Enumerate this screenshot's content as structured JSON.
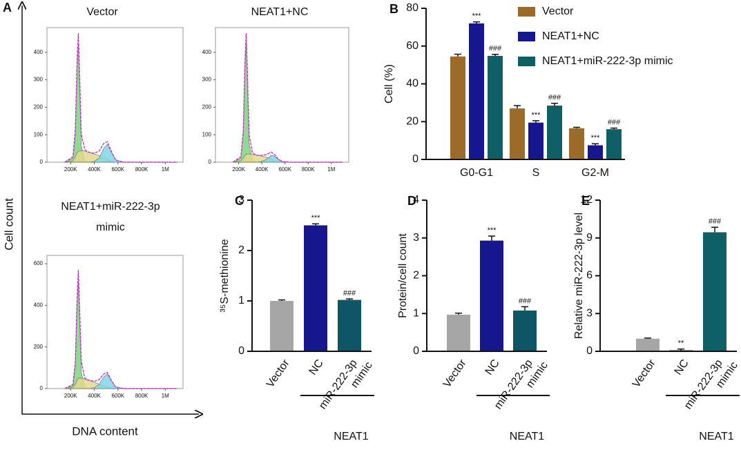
{
  "panel_A": {
    "label": "A",
    "y_label": "Cell count",
    "x_label": "DNA content"
  },
  "chart_data": [
    {
      "type": "histogram-curves",
      "title": [
        "Vector"
      ],
      "x": [
        150000,
        220000,
        240000,
        255000,
        265000,
        275000,
        290000,
        320000,
        360000,
        400000,
        440000,
        480000,
        510000,
        540000,
        580000,
        650000,
        1100000
      ],
      "series": [
        {
          "style": "area",
          "color": "#7ed37e",
          "values": [
            0,
            15,
            100,
            340,
            430,
            290,
            60,
            5,
            0,
            0,
            0,
            0,
            0,
            0,
            0,
            0,
            0
          ]
        },
        {
          "style": "area",
          "color": "#e2d98c",
          "values": [
            0,
            5,
            20,
            35,
            40,
            42,
            42,
            40,
            35,
            30,
            25,
            18,
            10,
            4,
            0,
            0,
            0
          ]
        },
        {
          "style": "area",
          "color": "#80d6e8",
          "values": [
            0,
            0,
            0,
            0,
            0,
            0,
            0,
            0,
            0,
            3,
            15,
            50,
            65,
            40,
            8,
            0,
            0
          ]
        },
        {
          "style": "line",
          "color": "#cc33cc",
          "values": [
            0,
            20,
            120,
            375,
            470,
            332,
            102,
            45,
            35,
            33,
            40,
            68,
            75,
            44,
            8,
            0,
            0
          ]
        }
      ],
      "xlim": [
        0,
        1150000
      ],
      "ylim": [
        0,
        490
      ],
      "yticks": [
        0,
        100,
        200,
        300,
        400
      ],
      "xticks": [
        {
          "value": 200000,
          "label": "200K"
        },
        {
          "value": 400000,
          "label": "400K"
        },
        {
          "value": 600000,
          "label": "600K"
        },
        {
          "value": 800000,
          "label": "800K"
        },
        {
          "value": 1000000,
          "label": "1M"
        }
      ]
    },
    {
      "type": "histogram-curves",
      "title": [
        "NEAT1+NC"
      ],
      "x": [
        150000,
        220000,
        240000,
        255000,
        265000,
        275000,
        290000,
        320000,
        360000,
        400000,
        440000,
        480000,
        510000,
        540000,
        580000,
        650000,
        1100000
      ],
      "series": [
        {
          "style": "area",
          "color": "#7ed37e",
          "values": [
            0,
            15,
            100,
            350,
            440,
            300,
            70,
            5,
            0,
            0,
            0,
            0,
            0,
            0,
            0,
            0,
            0
          ]
        },
        {
          "style": "area",
          "color": "#e2d98c",
          "values": [
            0,
            5,
            15,
            25,
            30,
            30,
            30,
            28,
            25,
            22,
            18,
            12,
            6,
            2,
            0,
            0,
            0
          ]
        },
        {
          "style": "area",
          "color": "#80d6e8",
          "values": [
            0,
            0,
            0,
            0,
            0,
            0,
            0,
            0,
            0,
            3,
            10,
            25,
            22,
            10,
            2,
            0,
            0
          ]
        },
        {
          "style": "line",
          "color": "#cc33cc",
          "values": [
            0,
            20,
            115,
            375,
            470,
            330,
            100,
            33,
            25,
            25,
            28,
            37,
            28,
            12,
            2,
            0,
            0
          ]
        }
      ],
      "xlim": [
        0,
        1150000
      ],
      "ylim": [
        0,
        490
      ],
      "yticks": [
        0,
        100,
        200,
        300,
        400
      ],
      "xticks": [
        {
          "value": 200000,
          "label": "200K"
        },
        {
          "value": 400000,
          "label": "400K"
        },
        {
          "value": 600000,
          "label": "600K"
        },
        {
          "value": 800000,
          "label": "800K"
        },
        {
          "value": 1000000,
          "label": "1M"
        }
      ]
    },
    {
      "type": "histogram-curves",
      "title": [
        "NEAT1+miR-222-3p",
        "mimic"
      ],
      "x": [
        150000,
        220000,
        240000,
        255000,
        265000,
        275000,
        290000,
        320000,
        360000,
        400000,
        440000,
        480000,
        510000,
        540000,
        580000,
        650000,
        1100000
      ],
      "series": [
        {
          "style": "area",
          "color": "#7ed37e",
          "values": [
            0,
            15,
            110,
            400,
            520,
            350,
            80,
            5,
            0,
            0,
            0,
            0,
            0,
            0,
            0,
            0,
            0
          ]
        },
        {
          "style": "area",
          "color": "#e2d98c",
          "values": [
            0,
            5,
            20,
            40,
            50,
            50,
            50,
            45,
            38,
            30,
            22,
            15,
            8,
            3,
            0,
            0,
            0
          ]
        },
        {
          "style": "area",
          "color": "#80d6e8",
          "values": [
            0,
            0,
            0,
            0,
            0,
            0,
            0,
            0,
            0,
            5,
            20,
            55,
            70,
            40,
            8,
            0,
            0
          ]
        },
        {
          "style": "line",
          "color": "#cc33cc",
          "values": [
            0,
            20,
            130,
            440,
            570,
            400,
            130,
            50,
            38,
            35,
            42,
            70,
            78,
            43,
            8,
            0,
            0
          ]
        }
      ],
      "xlim": [
        0,
        1150000
      ],
      "ylim": [
        0,
        640
      ],
      "yticks": [
        0,
        200,
        400,
        600
      ],
      "xticks": [
        {
          "value": 200000,
          "label": "200K"
        },
        {
          "value": 400000,
          "label": "400K"
        },
        {
          "value": 600000,
          "label": "600K"
        },
        {
          "value": 800000,
          "label": "800K"
        },
        {
          "value": 1000000,
          "label": "1M"
        }
      ]
    },
    {
      "type": "grouped-bar",
      "panel_label": "B",
      "y_label": "Cell (%)",
      "categories": [
        "G0-G1",
        "S",
        "G2-M"
      ],
      "series": [
        {
          "name": "Vector",
          "color": "#9c6a29",
          "values": [
            54.5,
            27,
            16.5
          ],
          "errors": [
            1.2,
            1.5,
            0.5
          ],
          "annotations": [
            null,
            null,
            null
          ]
        },
        {
          "name": "NEAT1+NC",
          "color": "#16168f",
          "values": [
            72,
            19.5,
            7.5
          ],
          "errors": [
            0.8,
            1,
            0.8
          ],
          "annotations": [
            "***",
            "***",
            "***"
          ]
        },
        {
          "name": "NEAT1+miR-222-3p mimic",
          "color": "#0e5f66",
          "values": [
            54.8,
            28.5,
            16
          ],
          "errors": [
            0.8,
            1.2,
            0.6
          ],
          "annotations": [
            "###",
            "###",
            "###"
          ]
        }
      ],
      "ylim": [
        0,
        80
      ],
      "yticks": [
        0,
        20,
        40,
        60,
        80
      ],
      "legend": "top-right"
    },
    {
      "type": "bar",
      "panel_label": "C",
      "y_label": "³⁵S-methionine",
      "categories": [
        [
          "Vector"
        ],
        [
          "NC"
        ],
        [
          "miR-222-3p",
          "mimic"
        ]
      ],
      "group_label": "NEAT1",
      "values": [
        1.0,
        2.5,
        1.02
      ],
      "errors": [
        0.02,
        0.03,
        0.02
      ],
      "annotations": [
        null,
        "***",
        "###"
      ],
      "colors": [
        "#a6a6a6",
        "#16168f",
        "#0e5566"
      ],
      "ylim": [
        0,
        3
      ],
      "yticks": [
        0,
        1,
        2,
        3
      ]
    },
    {
      "type": "bar",
      "panel_label": "D",
      "y_label": "Protein/cell count",
      "categories": [
        [
          "Vector"
        ],
        [
          "NC"
        ],
        [
          "miR-222-3p",
          "mimic"
        ]
      ],
      "group_label": "NEAT1",
      "values": [
        0.97,
        2.93,
        1.08
      ],
      "errors": [
        0.04,
        0.12,
        0.1
      ],
      "annotations": [
        null,
        "***",
        "###"
      ],
      "colors": [
        "#a6a6a6",
        "#16168f",
        "#0e5566"
      ],
      "ylim": [
        0,
        4
      ],
      "yticks": [
        0,
        1,
        2,
        3,
        4
      ]
    },
    {
      "type": "bar",
      "panel_label": "E",
      "y_label": "Relative miR-222-3p level",
      "categories": [
        [
          "Vector"
        ],
        [
          "NC"
        ],
        [
          "miR-222-3p",
          "mimic"
        ]
      ],
      "group_label": "NEAT1",
      "values": [
        1.0,
        0.08,
        9.45
      ],
      "errors": [
        0.05,
        0.1,
        0.4
      ],
      "annotations": [
        null,
        "**",
        "###"
      ],
      "colors": [
        "#a6a6a6",
        "#16168f",
        "#0e5f66"
      ],
      "ylim": [
        0,
        12
      ],
      "yticks": [
        0,
        3,
        6,
        9,
        12
      ]
    }
  ]
}
